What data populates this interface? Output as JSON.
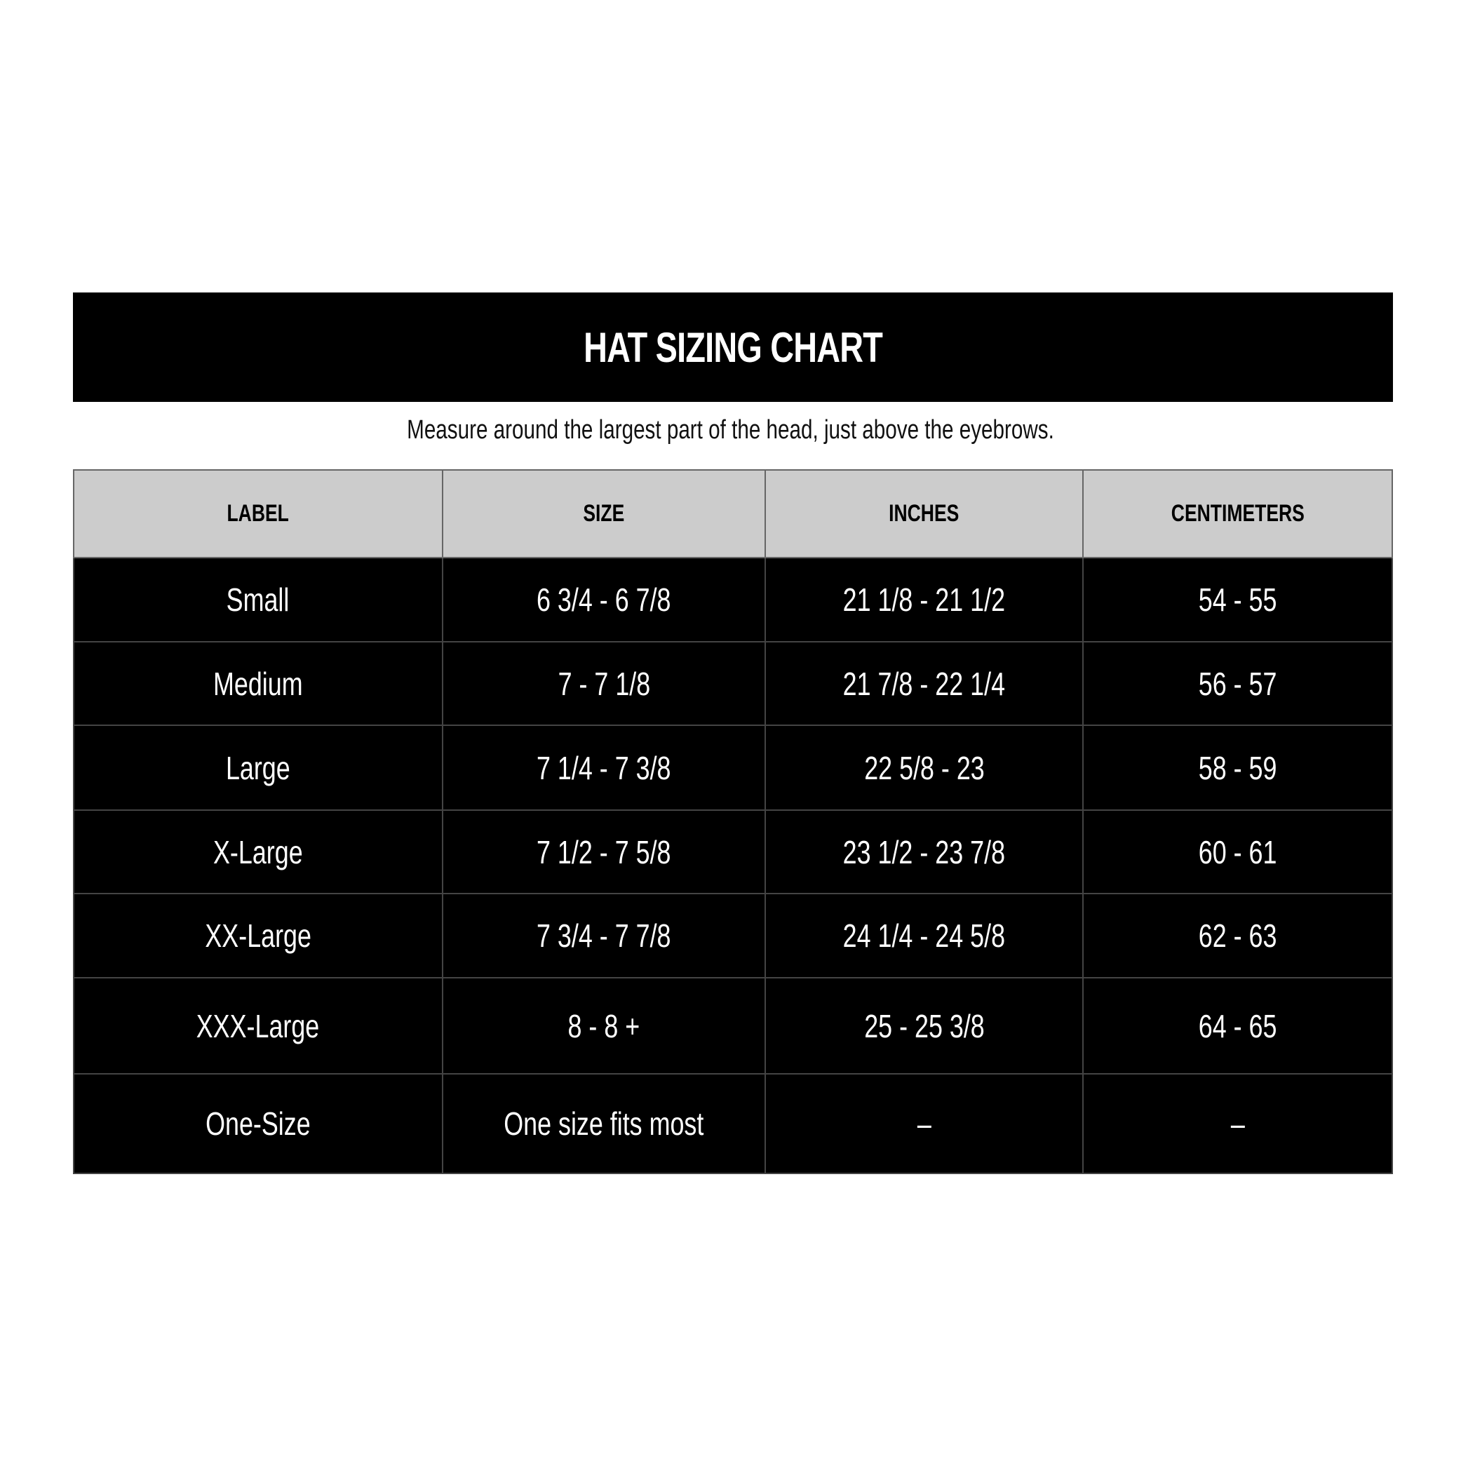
{
  "title": "HAT SIZING CHART",
  "subtitle": "Measure around the largest part of the head, just above the eyebrows.",
  "table": {
    "headers": [
      "LABEL",
      "SIZE",
      "INCHES",
      "CENTIMETERS"
    ],
    "rows": [
      [
        "Small",
        "6 3/4 - 6 7/8",
        "21 1/8 - 21 1/2",
        "54 - 55"
      ],
      [
        "Medium",
        "7 - 7 1/8",
        "21 7/8 - 22 1/4",
        "56 - 57"
      ],
      [
        "Large",
        "7 1/4 - 7 3/8",
        "22 5/8 - 23",
        "58 - 59"
      ],
      [
        "X-Large",
        "7 1/2 - 7 5/8",
        "23 1/2 - 23 7/8",
        "60 - 61"
      ],
      [
        "XX-Large",
        "7 3/4 - 7 7/8",
        "24 1/4 - 24 5/8",
        "62 - 63"
      ],
      [
        "XXX-Large",
        "8 - 8 +",
        "25 - 25 3/8",
        "64 - 65"
      ],
      [
        "One-Size",
        "One size fits most",
        "–",
        "–"
      ]
    ]
  },
  "colors": {
    "banner": "#000000",
    "header_row": "#cccccc",
    "body_row": "#000000",
    "body_text": "#ffffff"
  }
}
